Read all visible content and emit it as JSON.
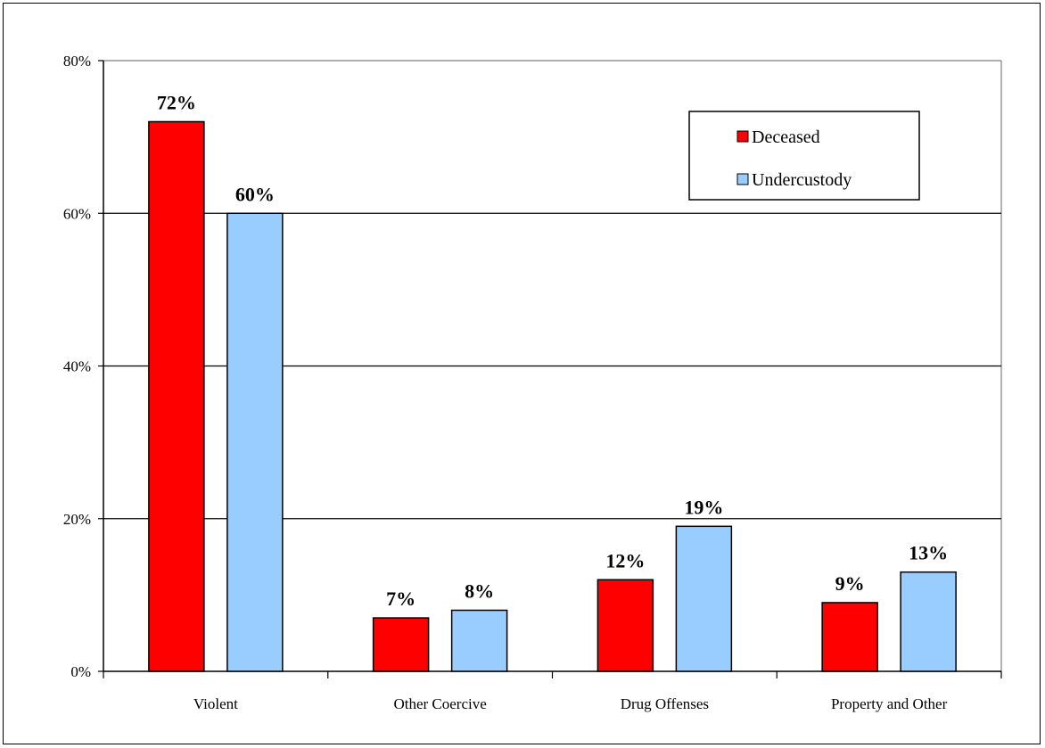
{
  "chart_data": {
    "type": "bar",
    "categories": [
      "Violent",
      "Other Coercive",
      "Drug Offenses",
      "Property and Other"
    ],
    "series": [
      {
        "name": "Deceased",
        "values": [
          72,
          7,
          12,
          9
        ],
        "labels": [
          "72%",
          "7%",
          "12%",
          "9%"
        ],
        "color": "#ff0000"
      },
      {
        "name": "Undercustody",
        "values": [
          60,
          8,
          19,
          13
        ],
        "labels": [
          "60%",
          "8%",
          "19%",
          "13%"
        ],
        "color": "#99ccff"
      }
    ],
    "ylim": [
      0,
      80
    ],
    "yticks": [
      0,
      20,
      40,
      60,
      80
    ],
    "ytick_labels": [
      "0%",
      "20%",
      "40%",
      "60%",
      "80%"
    ],
    "grid": true,
    "legend_position": "top-right"
  }
}
